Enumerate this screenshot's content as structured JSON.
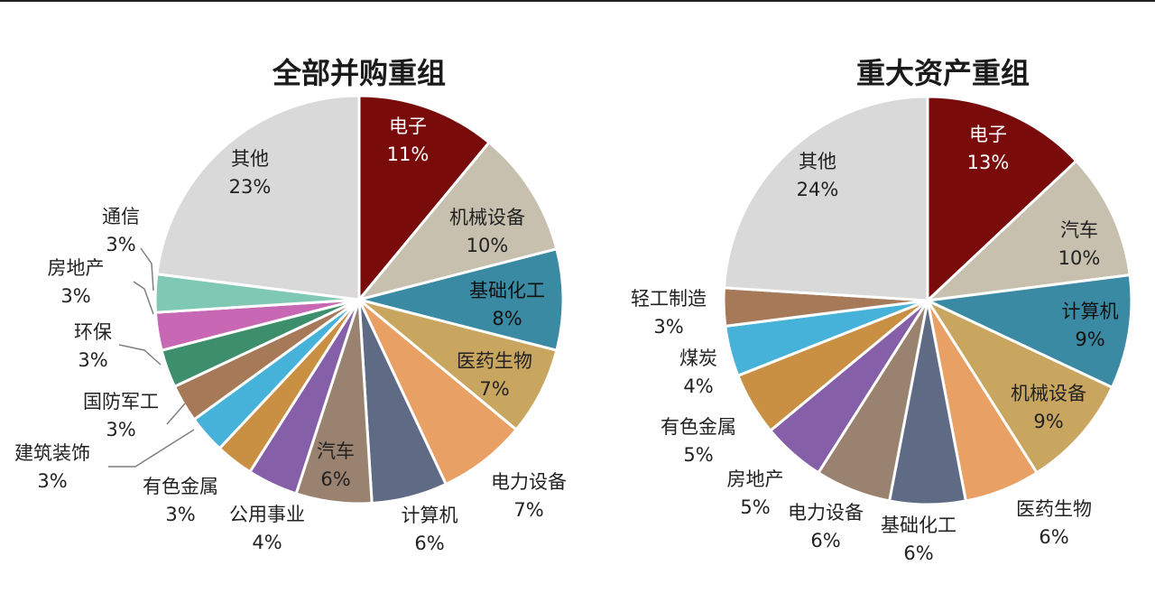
{
  "chart_data": [
    {
      "type": "pie",
      "title": "全部并购重组",
      "unit": "%",
      "slices": [
        {
          "label": "电子",
          "value": 11,
          "pct": "11%",
          "color": "#7a0b0b",
          "label_color": "#ffffff"
        },
        {
          "label": "机械设备",
          "value": 10,
          "pct": "10%",
          "color": "#c7c0ae",
          "label_color": "#222222"
        },
        {
          "label": "基础化工",
          "value": 8,
          "pct": "8%",
          "color": "#3b8aa3",
          "label_color": "#111111"
        },
        {
          "label": "医药生物",
          "value": 7,
          "pct": "7%",
          "color": "#c9a660",
          "label_color": "#222222"
        },
        {
          "label": "电力设备",
          "value": 7,
          "pct": "7%",
          "color": "#e9a064",
          "label_color": "#222222"
        },
        {
          "label": "计算机",
          "value": 6,
          "pct": "6%",
          "color": "#5f6a85",
          "label_color": "#222222"
        },
        {
          "label": "汽车",
          "value": 6,
          "pct": "6%",
          "color": "#9a8270",
          "label_color": "#222222"
        },
        {
          "label": "公用事业",
          "value": 4,
          "pct": "4%",
          "color": "#8560a8",
          "label_color": "#222222"
        },
        {
          "label": "有色金属",
          "value": 3,
          "pct": "3%",
          "color": "#c99043",
          "label_color": "#222222"
        },
        {
          "label": "建筑装饰",
          "value": 3,
          "pct": "3%",
          "color": "#47b2d9",
          "label_color": "#222222"
        },
        {
          "label": "国防军工",
          "value": 3,
          "pct": "3%",
          "color": "#a67a58",
          "label_color": "#222222"
        },
        {
          "label": "环保",
          "value": 3,
          "pct": "3%",
          "color": "#3d8f6b",
          "label_color": "#222222"
        },
        {
          "label": "房地产",
          "value": 3,
          "pct": "3%",
          "color": "#c868b4",
          "label_color": "#222222"
        },
        {
          "label": "通信",
          "value": 3,
          "pct": "3%",
          "color": "#7fc8b4",
          "label_color": "#222222"
        },
        {
          "label": "其他",
          "value": 23,
          "pct": "23%",
          "color": "#d9d9d9",
          "label_color": "#222222"
        }
      ]
    },
    {
      "type": "pie",
      "title": "重大资产重组",
      "unit": "%",
      "slices": [
        {
          "label": "电子",
          "value": 13,
          "pct": "13%",
          "color": "#7a0b0b",
          "label_color": "#ffffff"
        },
        {
          "label": "汽车",
          "value": 10,
          "pct": "10%",
          "color": "#c7c0ae",
          "label_color": "#222222"
        },
        {
          "label": "计算机",
          "value": 9,
          "pct": "9%",
          "color": "#3b8aa3",
          "label_color": "#111111"
        },
        {
          "label": "机械设备",
          "value": 9,
          "pct": "9%",
          "color": "#c9a660",
          "label_color": "#222222"
        },
        {
          "label": "医药生物",
          "value": 6,
          "pct": "6%",
          "color": "#e9a064",
          "label_color": "#222222"
        },
        {
          "label": "基础化工",
          "value": 6,
          "pct": "6%",
          "color": "#5f6a85",
          "label_color": "#222222"
        },
        {
          "label": "电力设备",
          "value": 6,
          "pct": "6%",
          "color": "#9a8270",
          "label_color": "#222222"
        },
        {
          "label": "房地产",
          "value": 5,
          "pct": "5%",
          "color": "#8560a8",
          "label_color": "#222222"
        },
        {
          "label": "有色金属",
          "value": 5,
          "pct": "5%",
          "color": "#c99043",
          "label_color": "#222222"
        },
        {
          "label": "煤炭",
          "value": 4,
          "pct": "4%",
          "color": "#47b2d9",
          "label_color": "#222222"
        },
        {
          "label": "轻工制造",
          "value": 3,
          "pct": "3%",
          "color": "#a67a58",
          "label_color": "#222222"
        },
        {
          "label": "其他",
          "value": 24,
          "pct": "24%",
          "color": "#d9d9d9",
          "label_color": "#222222"
        }
      ]
    }
  ]
}
